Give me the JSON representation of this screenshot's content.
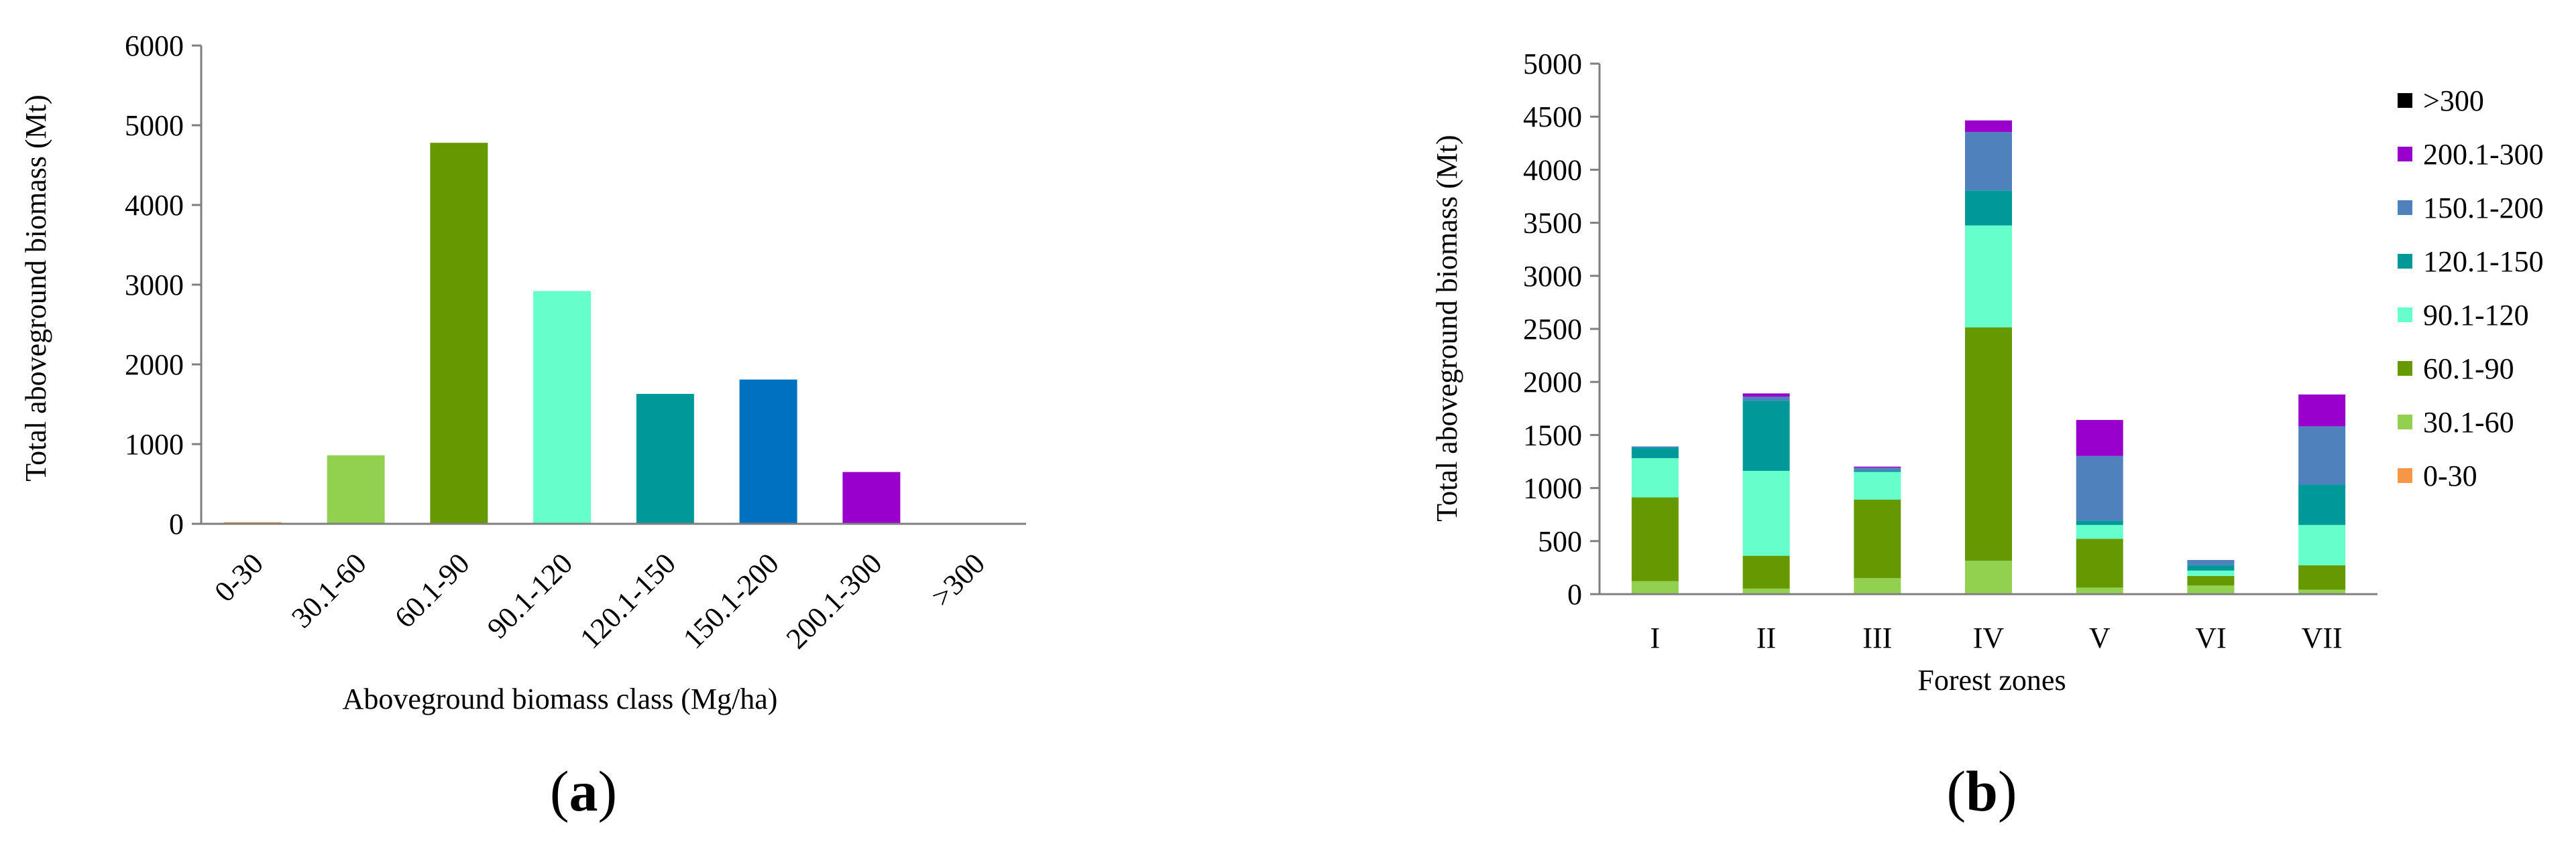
{
  "chart_data": [
    {
      "type": "bar",
      "panel_label": "a",
      "title": "",
      "xlabel": "Aboveground biomass class (Mg/ha)",
      "ylabel": "Total aboveground biomass (Mt)",
      "ylim": [
        0,
        6000
      ],
      "yticks": [
        "0",
        "1000",
        "2000",
        "3000",
        "4000",
        "5000",
        "6000"
      ],
      "categories": [
        "0-30",
        "30.1-60",
        "60.1-90",
        "90.1-120",
        "120.1-150",
        "150.1-200",
        "200.1-300",
        ">300"
      ],
      "values": [
        20,
        860,
        4780,
        2920,
        1630,
        1810,
        650,
        0
      ],
      "colors": [
        "#f79646",
        "#92d050",
        "#669900",
        "#66ffcc",
        "#009999",
        "#0070c0",
        "#9900cc",
        "#000000"
      ],
      "grid": false,
      "legend": "none"
    },
    {
      "type": "bar",
      "stacked": true,
      "panel_label": "b",
      "title": "",
      "xlabel": "Forest zones",
      "ylabel": "Total aboveground biomass (Mt)",
      "ylim": [
        0,
        5000
      ],
      "yticks": [
        "0",
        "500",
        "1000",
        "1500",
        "2000",
        "2500",
        "3000",
        "3500",
        "4000",
        "4500",
        "5000"
      ],
      "categories": [
        "I",
        "II",
        "III",
        "IV",
        "V",
        "VI",
        "VII"
      ],
      "series": [
        {
          "name": "0-30",
          "color": "#f79646",
          "values": [
            2,
            2,
            2,
            5,
            2,
            2,
            2
          ]
        },
        {
          "name": "30.1-60",
          "color": "#92d050",
          "values": [
            120,
            50,
            150,
            310,
            60,
            80,
            40
          ]
        },
        {
          "name": "60.1-90",
          "color": "#669900",
          "values": [
            790,
            310,
            740,
            2200,
            460,
            90,
            230
          ]
        },
        {
          "name": "90.1-120",
          "color": "#66ffcc",
          "values": [
            370,
            800,
            260,
            960,
            130,
            50,
            380
          ]
        },
        {
          "name": "120.1-150",
          "color": "#009999",
          "values": [
            100,
            660,
            10,
            330,
            40,
            50,
            380
          ]
        },
        {
          "name": "150.1-200",
          "color": "#4f81bd",
          "values": [
            10,
            40,
            30,
            550,
            610,
            50,
            550
          ]
        },
        {
          "name": "200.1-300",
          "color": "#9900cc",
          "values": [
            0,
            30,
            10,
            110,
            340,
            0,
            300
          ]
        },
        {
          "name": ">300",
          "color": "#000000",
          "values": [
            0,
            0,
            0,
            0,
            0,
            0,
            0
          ]
        }
      ],
      "grid": false,
      "legend": "right"
    }
  ]
}
